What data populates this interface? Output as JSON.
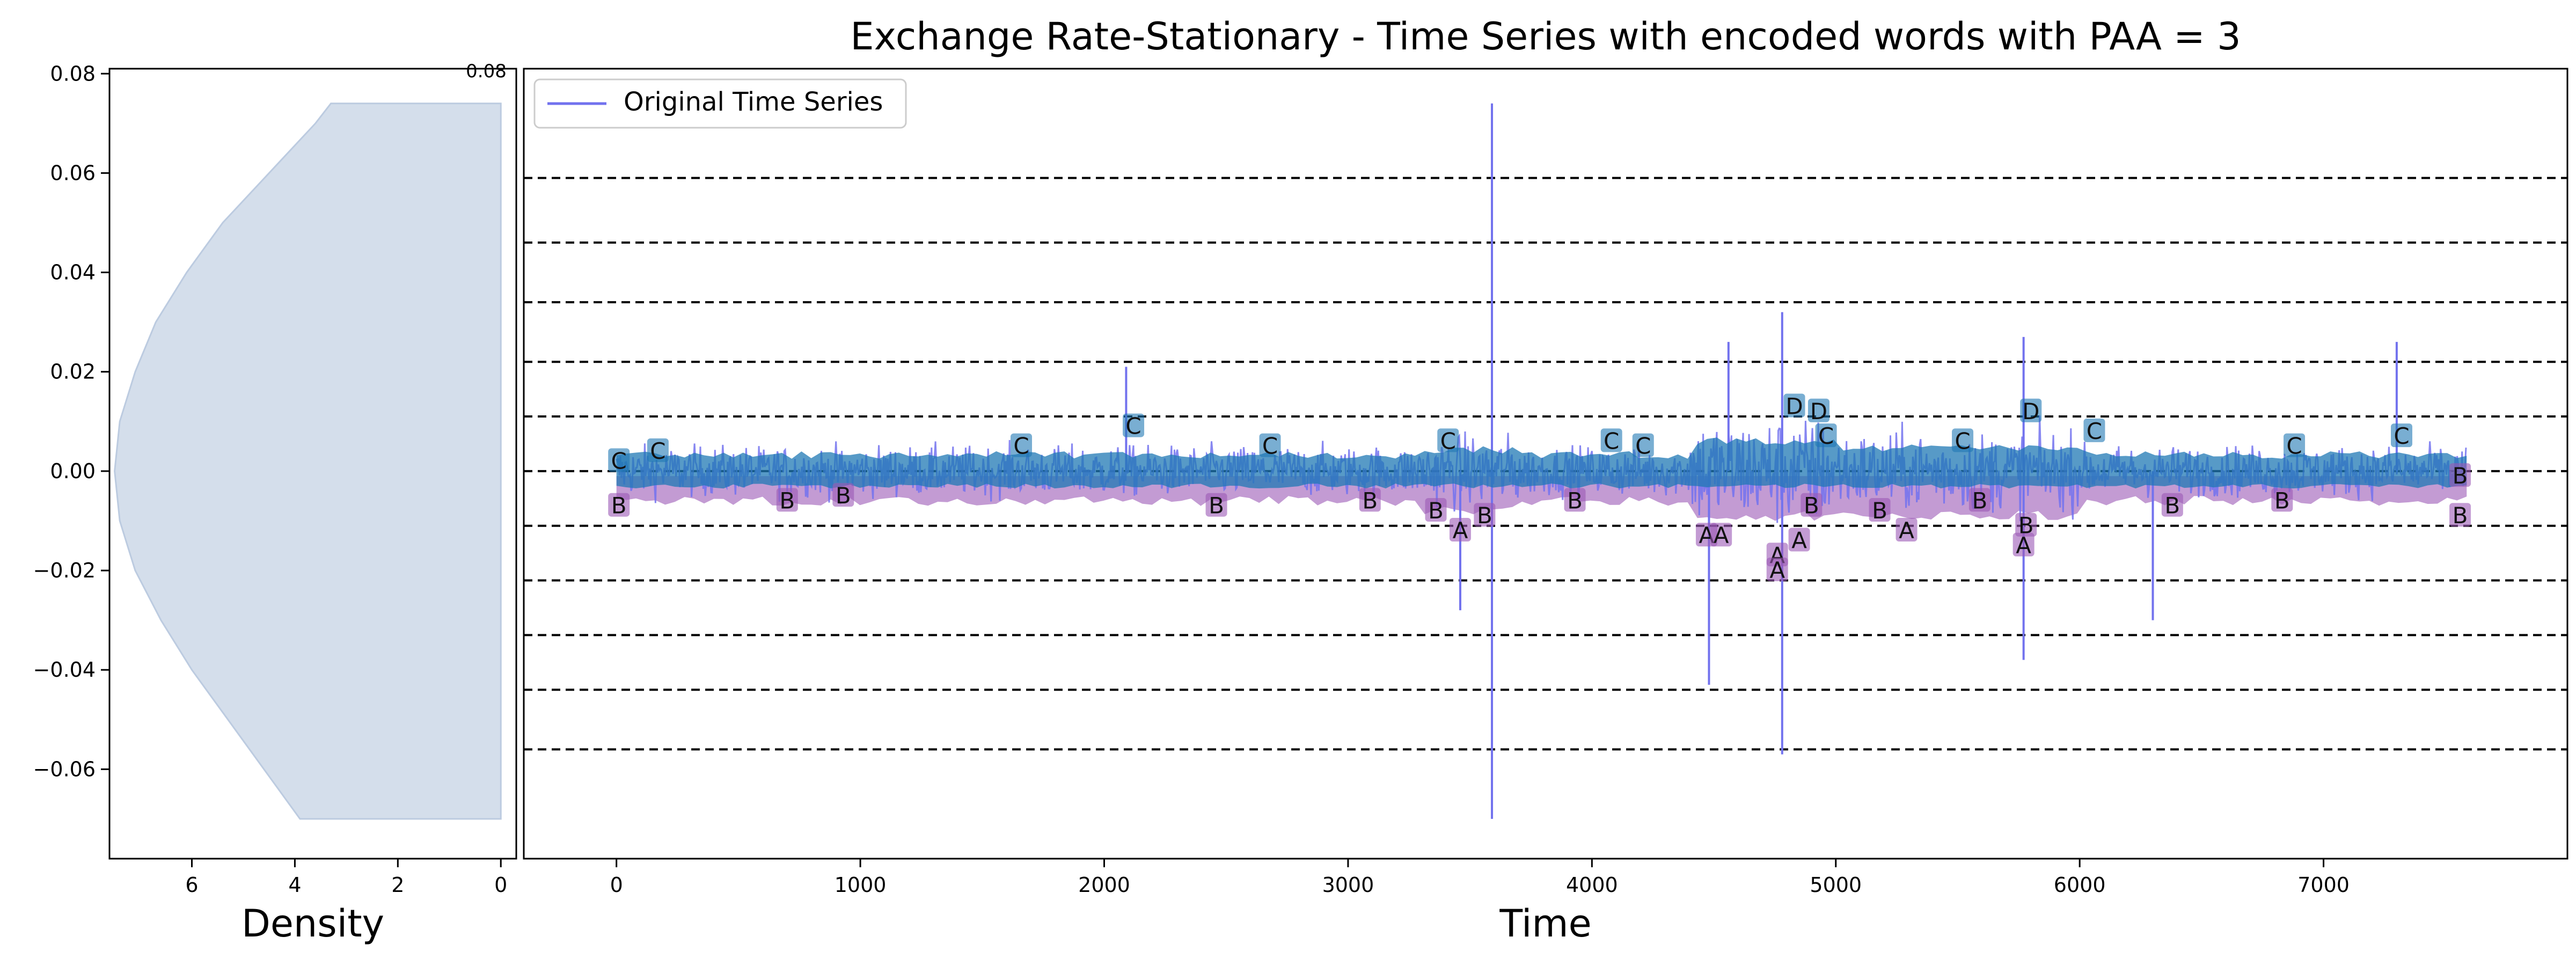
{
  "colors": {
    "series": "#7272ee",
    "upper_band": "#1f78b4",
    "lower_band": "#9b59b6",
    "density_fill": "#d4deeb",
    "density_edge": "#bccbe0",
    "threshold": "#000000",
    "frame": "#000000"
  },
  "chart_data": [
    {
      "type": "area",
      "orientation": "horizontal",
      "xlabel": "Density",
      "ylabel": "",
      "xlim": [
        7.6,
        -0.3
      ],
      "ylim": [
        -0.078,
        0.081
      ],
      "x_ticks": [
        "6",
        "4",
        "2",
        "0"
      ],
      "x_tick_values": [
        6,
        4,
        2,
        0
      ],
      "y_ticks": [
        "0.08",
        "0.06",
        "0.04",
        "0.02",
        "0.00",
        "−0.02",
        "−0.04",
        "−0.06"
      ],
      "y_tick_values": [
        0.08,
        0.06,
        0.04,
        0.02,
        0.0,
        -0.02,
        -0.04,
        -0.06
      ],
      "corner_label": "0.08",
      "density_profile": {
        "y": [
          -0.07,
          -0.06,
          -0.05,
          -0.04,
          -0.03,
          -0.02,
          -0.01,
          0.0,
          0.01,
          0.02,
          0.03,
          0.04,
          0.05,
          0.06,
          0.07,
          0.074
        ],
        "density": [
          3.9,
          4.6,
          5.3,
          6.0,
          6.6,
          7.1,
          7.4,
          7.5,
          7.4,
          7.1,
          6.7,
          6.1,
          5.4,
          4.5,
          3.6,
          3.3
        ]
      },
      "grid": false
    },
    {
      "type": "line",
      "title": "Exchange Rate-Stationary - Time Series with encoded words with PAA = 3",
      "xlabel": "Time",
      "ylabel": "",
      "xlim": [
        -380,
        8000
      ],
      "ylim": [
        -0.078,
        0.081
      ],
      "x_ticks": [
        "0",
        "1000",
        "2000",
        "3000",
        "4000",
        "5000",
        "6000",
        "7000"
      ],
      "x_tick_values": [
        0,
        1000,
        2000,
        3000,
        4000,
        5000,
        6000,
        7000
      ],
      "legend": {
        "position": "top-left",
        "entries": [
          "Original Time Series"
        ]
      },
      "grid": false,
      "horizontal_thresholds": [
        0.059,
        0.046,
        0.034,
        0.022,
        0.011,
        0.0,
        -0.011,
        -0.022,
        -0.033,
        -0.044,
        -0.056
      ],
      "series": [
        {
          "name": "Original Time Series",
          "n_points": 7588,
          "spikes": [
            {
              "x": 3590,
              "y": 0.074
            },
            {
              "x": 3590,
              "y": -0.07
            },
            {
              "x": 4780,
              "y": 0.032
            },
            {
              "x": 4780,
              "y": -0.057
            },
            {
              "x": 4480,
              "y": -0.043
            },
            {
              "x": 4560,
              "y": 0.026
            },
            {
              "x": 5770,
              "y": 0.027
            },
            {
              "x": 5770,
              "y": -0.038
            },
            {
              "x": 3460,
              "y": -0.028
            },
            {
              "x": 2090,
              "y": 0.021
            },
            {
              "x": 6300,
              "y": -0.03
            },
            {
              "x": 7300,
              "y": 0.026
            }
          ]
        }
      ],
      "encoded_word_labels": [
        {
          "letter": "C",
          "x": 2120,
          "y": 0.009
        },
        {
          "letter": "B",
          "x": 10,
          "y": -0.007
        },
        {
          "letter": "C",
          "x": 10,
          "y": 0.002
        },
        {
          "letter": "B",
          "x": 700,
          "y": -0.006
        },
        {
          "letter": "B",
          "x": 930,
          "y": -0.005
        },
        {
          "letter": "B",
          "x": 2460,
          "y": -0.007
        },
        {
          "letter": "B",
          "x": 3090,
          "y": -0.006
        },
        {
          "letter": "B",
          "x": 3360,
          "y": -0.008
        },
        {
          "letter": "A",
          "x": 3460,
          "y": -0.012
        },
        {
          "letter": "B",
          "x": 3560,
          "y": -0.009
        },
        {
          "letter": "A",
          "x": 4470,
          "y": -0.013
        },
        {
          "letter": "A",
          "x": 4530,
          "y": -0.013
        },
        {
          "letter": "A",
          "x": 4850,
          "y": -0.014
        },
        {
          "letter": "A",
          "x": 4760,
          "y": -0.017
        },
        {
          "letter": "A",
          "x": 4760,
          "y": -0.02
        },
        {
          "letter": "D",
          "x": 4830,
          "y": 0.013
        },
        {
          "letter": "D",
          "x": 4930,
          "y": 0.012
        },
        {
          "letter": "C",
          "x": 4960,
          "y": 0.007
        },
        {
          "letter": "B",
          "x": 5180,
          "y": -0.008
        },
        {
          "letter": "A",
          "x": 5290,
          "y": -0.012
        },
        {
          "letter": "D",
          "x": 5800,
          "y": 0.012
        },
        {
          "letter": "A",
          "x": 5770,
          "y": -0.015
        },
        {
          "letter": "B",
          "x": 5780,
          "y": -0.011
        },
        {
          "letter": "C",
          "x": 6060,
          "y": 0.008
        },
        {
          "letter": "B",
          "x": 6380,
          "y": -0.007
        },
        {
          "letter": "C",
          "x": 7320,
          "y": 0.007
        },
        {
          "letter": "B",
          "x": 7560,
          "y": -0.001
        },
        {
          "letter": "B",
          "x": 7560,
          "y": -0.009
        },
        {
          "letter": "C",
          "x": 170,
          "y": 0.004
        },
        {
          "letter": "C",
          "x": 1660,
          "y": 0.005
        },
        {
          "letter": "C",
          "x": 2680,
          "y": 0.005
        },
        {
          "letter": "C",
          "x": 3410,
          "y": 0.006
        },
        {
          "letter": "C",
          "x": 4080,
          "y": 0.006
        },
        {
          "letter": "C",
          "x": 4210,
          "y": 0.005
        },
        {
          "letter": "C",
          "x": 5520,
          "y": 0.006
        },
        {
          "letter": "C",
          "x": 6880,
          "y": 0.005
        },
        {
          "letter": "B",
          "x": 6830,
          "y": -0.006
        },
        {
          "letter": "B",
          "x": 5590,
          "y": -0.006
        },
        {
          "letter": "B",
          "x": 4900,
          "y": -0.007
        },
        {
          "letter": "B",
          "x": 3930,
          "y": -0.006
        }
      ]
    }
  ]
}
